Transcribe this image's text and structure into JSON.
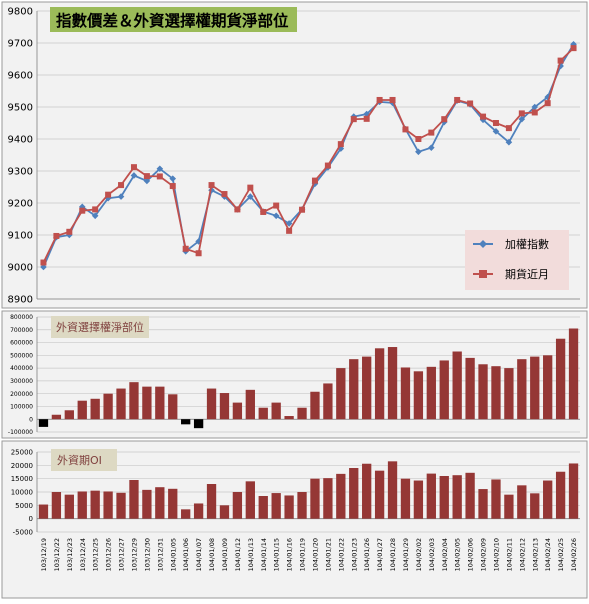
{
  "chart_data": [
    {
      "type": "line",
      "title": "指數價差＆外資選擇權期貨淨部位",
      "ylim": [
        8900,
        9800
      ],
      "yticks": [
        8900,
        9000,
        9100,
        9200,
        9300,
        9400,
        9500,
        9600,
        9700,
        9800
      ],
      "grid": true,
      "legend_placement": "right",
      "series": [
        {
          "name": "加權指數",
          "color": "#4f81bd",
          "values": [
            9000,
            9093,
            9100,
            9188,
            9160,
            9215,
            9220,
            9286,
            9269,
            9307,
            9276,
            9049,
            9080,
            9240,
            9220,
            9180,
            9220,
            9173,
            9160,
            9136,
            9180,
            9260,
            9311,
            9370,
            9470,
            9478,
            9516,
            9513,
            9431,
            9360,
            9373,
            9453,
            9520,
            9508,
            9460,
            9424,
            9390,
            9462,
            9500,
            9531,
            9628,
            9696
          ]
        },
        {
          "name": "期貨近月",
          "color": "#c0504d",
          "values": [
            9014,
            9097,
            9110,
            9176,
            9180,
            9226,
            9256,
            9312,
            9284,
            9283,
            9253,
            9057,
            9043,
            9256,
            9228,
            9180,
            9248,
            9172,
            9192,
            9113,
            9179,
            9270,
            9317,
            9384,
            9462,
            9463,
            9522,
            9522,
            9430,
            9400,
            9420,
            9462,
            9522,
            9511,
            9470,
            9450,
            9434,
            9480,
            9483,
            9512,
            9645,
            9684
          ]
        }
      ]
    },
    {
      "type": "bar",
      "title": "外資選擇權淨部位",
      "ylim": [
        -100000,
        800000
      ],
      "yticks": [
        -100000,
        0,
        100000,
        200000,
        300000,
        400000,
        500000,
        600000,
        700000,
        800000
      ],
      "grid": true,
      "series": [
        {
          "name": "外資選擇權淨部位",
          "color": "#953735",
          "values": [
            -60000,
            35000,
            70000,
            145000,
            160000,
            200000,
            240000,
            290000,
            255000,
            255000,
            195000,
            -40000,
            -70000,
            240000,
            205000,
            130000,
            230000,
            90000,
            130000,
            25000,
            90000,
            215000,
            280000,
            400000,
            470000,
            490000,
            555000,
            565000,
            405000,
            375000,
            410000,
            460000,
            530000,
            480000,
            430000,
            415000,
            400000,
            470000,
            490000,
            500000,
            630000,
            710000
          ]
        }
      ]
    },
    {
      "type": "bar",
      "title": "外資期OI",
      "ylim": [
        -5000,
        25000
      ],
      "yticks": [
        -5000,
        0,
        5000,
        10000,
        15000,
        20000,
        25000
      ],
      "grid": true,
      "series": [
        {
          "name": "外資期OI",
          "color": "#953735",
          "values": [
            5300,
            10000,
            9000,
            10200,
            10500,
            10200,
            9700,
            14500,
            10800,
            11800,
            11200,
            3500,
            5700,
            13000,
            5000,
            10000,
            14000,
            8500,
            9600,
            8700,
            10000,
            15000,
            15200,
            16800,
            19000,
            20600,
            18000,
            21500,
            15000,
            14300,
            16900,
            16000,
            16300,
            17200,
            11100,
            14700,
            9000,
            12500,
            9500,
            14300,
            17600,
            20700
          ]
        }
      ]
    }
  ],
  "x_labels": [
    "103/12/19",
    "103/12/22",
    "103/12/23",
    "103/12/24",
    "103/12/25",
    "103/12/26",
    "103/12/27",
    "103/12/29",
    "103/12/30",
    "103/12/31",
    "104/01/05",
    "104/01/06",
    "104/01/07",
    "104/01/08",
    "104/01/09",
    "104/01/12",
    "104/01/13",
    "104/01/14",
    "104/01/15",
    "104/01/16",
    "104/01/19",
    "104/01/20",
    "104/01/21",
    "104/01/22",
    "104/01/23",
    "104/01/26",
    "104/01/27",
    "104/01/28",
    "104/01/29",
    "104/02/02",
    "104/02/03",
    "104/02/04",
    "104/02/05",
    "104/02/06",
    "104/02/09",
    "104/02/10",
    "104/02/11",
    "104/02/12",
    "104/02/13",
    "104/02/24",
    "104/02/25",
    "104/02/26"
  ],
  "colors": {
    "index_line": "#4f81bd",
    "futures_line": "#c0504d",
    "bar": "#953735",
    "negative_bar": "#000000",
    "title_box_top": "#9bbb59",
    "title_box_bottom": "#ddd9c3"
  }
}
